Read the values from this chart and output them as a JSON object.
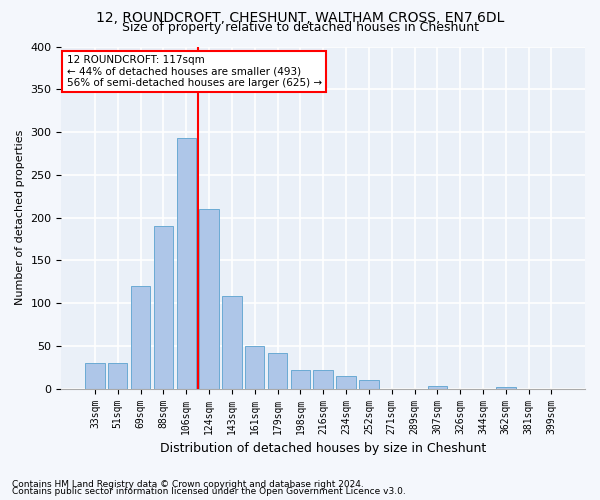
{
  "title": "12, ROUNDCROFT, CHESHUNT, WALTHAM CROSS, EN7 6DL",
  "subtitle": "Size of property relative to detached houses in Cheshunt",
  "xlabel": "Distribution of detached houses by size in Cheshunt",
  "ylabel": "Number of detached properties",
  "bar_color": "#aec6e8",
  "bar_edge_color": "#6aaad4",
  "background_color": "#eaf0f8",
  "grid_color": "#ffffff",
  "bins": [
    "33sqm",
    "51sqm",
    "69sqm",
    "88sqm",
    "106sqm",
    "124sqm",
    "143sqm",
    "161sqm",
    "179sqm",
    "198sqm",
    "216sqm",
    "234sqm",
    "252sqm",
    "271sqm",
    "289sqm",
    "307sqm",
    "326sqm",
    "344sqm",
    "362sqm",
    "381sqm",
    "399sqm"
  ],
  "values": [
    30,
    30,
    120,
    190,
    293,
    210,
    108,
    50,
    42,
    22,
    22,
    15,
    10,
    0,
    0,
    3,
    0,
    0,
    2,
    0,
    0
  ],
  "vline_x": 4.5,
  "annotation_lines": [
    "12 ROUNDCROFT: 117sqm",
    "← 44% of detached houses are smaller (493)",
    "56% of semi-detached houses are larger (625) →"
  ],
  "annotation_box_color": "white",
  "annotation_box_edge": "red",
  "vline_color": "red",
  "footnote1": "Contains HM Land Registry data © Crown copyright and database right 2024.",
  "footnote2": "Contains public sector information licensed under the Open Government Licence v3.0.",
  "ylim": [
    0,
    400
  ],
  "yticks": [
    0,
    50,
    100,
    150,
    200,
    250,
    300,
    350,
    400
  ],
  "fig_bg": "#f4f7fc"
}
